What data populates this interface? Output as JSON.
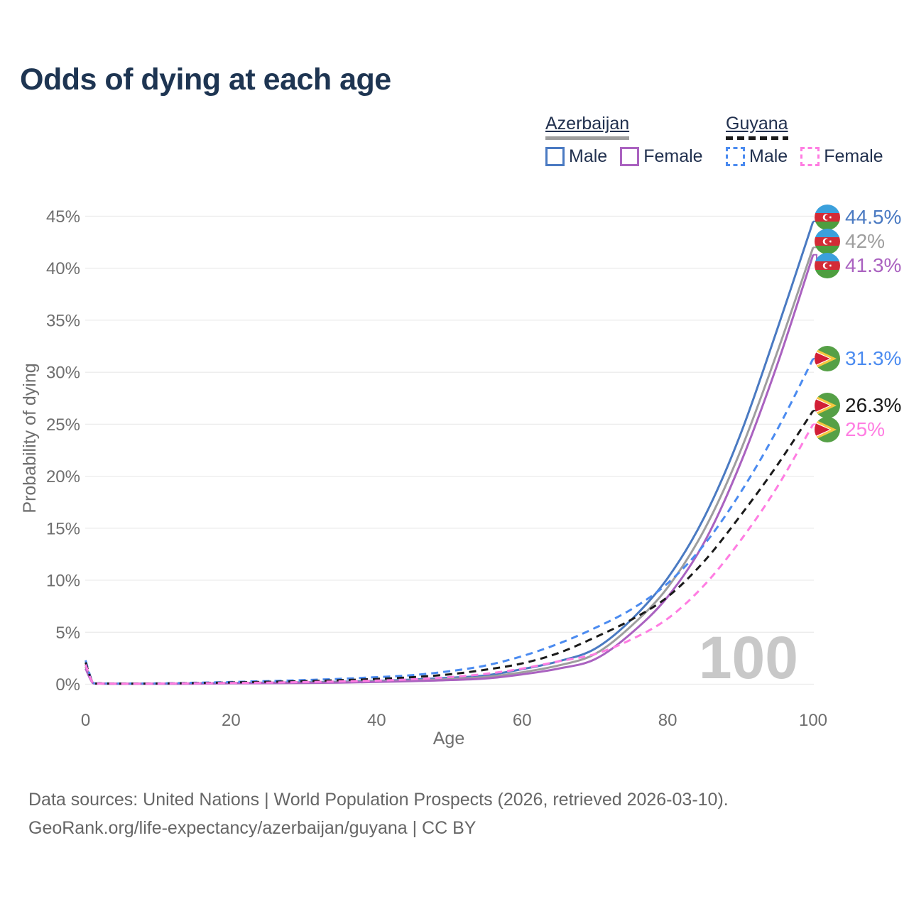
{
  "title": "Odds of dying at each age",
  "watermark": "100",
  "legend": {
    "azerbaijan": {
      "country": "Azerbaijan",
      "male": "Male",
      "female": "Female"
    },
    "guyana": {
      "country": "Guyana",
      "male": "Male",
      "female": "Female"
    }
  },
  "axes": {
    "y_title": "Probability of dying",
    "x_title": "Age",
    "y_ticks": [
      {
        "label": "0%",
        "value": 0
      },
      {
        "label": "5%",
        "value": 5
      },
      {
        "label": "10%",
        "value": 10
      },
      {
        "label": "15%",
        "value": 15
      },
      {
        "label": "20%",
        "value": 20
      },
      {
        "label": "25%",
        "value": 25
      },
      {
        "label": "30%",
        "value": 30
      },
      {
        "label": "35%",
        "value": 35
      },
      {
        "label": "40%",
        "value": 40
      },
      {
        "label": "45%",
        "value": 45
      }
    ],
    "x_ticks": [
      {
        "label": "0",
        "value": 0
      },
      {
        "label": "20",
        "value": 20
      },
      {
        "label": "40",
        "value": 40
      },
      {
        "label": "60",
        "value": 60
      },
      {
        "label": "80",
        "value": 80
      },
      {
        "label": "100",
        "value": 100
      }
    ]
  },
  "end_labels": [
    {
      "series": "azerbaijan-male",
      "value": "44.5%"
    },
    {
      "series": "azerbaijan-all",
      "value": "42%"
    },
    {
      "series": "azerbaijan-female",
      "value": "41.3%"
    },
    {
      "series": "guyana-male",
      "value": "31.3%"
    },
    {
      "series": "guyana-all",
      "value": "26.3%"
    },
    {
      "series": "guyana-female",
      "value": "25%"
    }
  ],
  "footer": {
    "line1": "Data sources: United Nations | World Population Prospects (2026, retrieved 2026-03-10).",
    "line2": "GeoRank.org/life-expectancy/azerbaijan/guyana | CC BY"
  },
  "chart_data": {
    "type": "line",
    "title": "Odds of dying at each age",
    "xlabel": "Age",
    "ylabel": "Probability of dying",
    "xlim": [
      0,
      100
    ],
    "ylim_pct": [
      0,
      45
    ],
    "grid": "horizontal",
    "ages": [
      0,
      1,
      2,
      5,
      10,
      15,
      20,
      25,
      30,
      35,
      40,
      45,
      50,
      55,
      60,
      65,
      70,
      75,
      80,
      85,
      90,
      95,
      100
    ],
    "series": [
      {
        "id": "az-male",
        "name": "Azerbaijan Male",
        "style": "solid",
        "color": "#4a7ac2",
        "end_value_pct": 44.5,
        "values_pct": [
          1.9,
          0.15,
          0.08,
          0.05,
          0.05,
          0.08,
          0.12,
          0.15,
          0.19,
          0.24,
          0.32,
          0.45,
          0.62,
          0.85,
          1.45,
          2.2,
          3.4,
          6.2,
          10.2,
          16.0,
          24.0,
          34.0,
          44.5
        ]
      },
      {
        "id": "az-all",
        "name": "Azerbaijan",
        "style": "solid",
        "color": "#9e9e9e",
        "end_value_pct": 42,
        "values_pct": [
          1.7,
          0.13,
          0.07,
          0.05,
          0.05,
          0.07,
          0.1,
          0.13,
          0.16,
          0.2,
          0.27,
          0.37,
          0.5,
          0.7,
          1.15,
          1.8,
          2.9,
          5.6,
          9.3,
          14.8,
          22.4,
          31.8,
          42.0
        ]
      },
      {
        "id": "az-female",
        "name": "Azerbaijan Female",
        "style": "solid",
        "color": "#aa62c0",
        "end_value_pct": 41.3,
        "values_pct": [
          1.5,
          0.11,
          0.06,
          0.04,
          0.04,
          0.05,
          0.08,
          0.1,
          0.12,
          0.16,
          0.22,
          0.3,
          0.4,
          0.55,
          0.95,
          1.5,
          2.4,
          4.9,
          8.4,
          13.6,
          21.2,
          30.6,
          41.3
        ]
      },
      {
        "id": "gy-male",
        "name": "Guyana Male",
        "style": "dashed",
        "color": "#4b8bf0",
        "end_value_pct": 31.3,
        "values_pct": [
          2.3,
          0.18,
          0.09,
          0.07,
          0.08,
          0.14,
          0.22,
          0.3,
          0.4,
          0.52,
          0.68,
          0.88,
          1.25,
          1.8,
          2.7,
          3.9,
          5.4,
          7.2,
          9.7,
          13.4,
          18.4,
          24.4,
          31.3
        ]
      },
      {
        "id": "gy-all",
        "name": "Guyana",
        "style": "dashed",
        "color": "#1a1a1a",
        "end_value_pct": 26.3,
        "values_pct": [
          2.1,
          0.16,
          0.08,
          0.06,
          0.07,
          0.11,
          0.17,
          0.23,
          0.3,
          0.39,
          0.51,
          0.68,
          0.95,
          1.4,
          2.0,
          3.0,
          4.5,
          6.2,
          8.4,
          11.8,
          16.2,
          21.0,
          26.3
        ]
      },
      {
        "id": "gy-female",
        "name": "Guyana Female",
        "style": "dashed",
        "color": "#ff7de2",
        "end_value_pct": 25,
        "values_pct": [
          1.9,
          0.14,
          0.07,
          0.05,
          0.06,
          0.09,
          0.12,
          0.16,
          0.21,
          0.27,
          0.35,
          0.48,
          0.68,
          1.0,
          1.5,
          2.2,
          2.9,
          4.3,
          6.3,
          9.5,
          13.8,
          18.9,
          25.0
        ]
      }
    ]
  }
}
